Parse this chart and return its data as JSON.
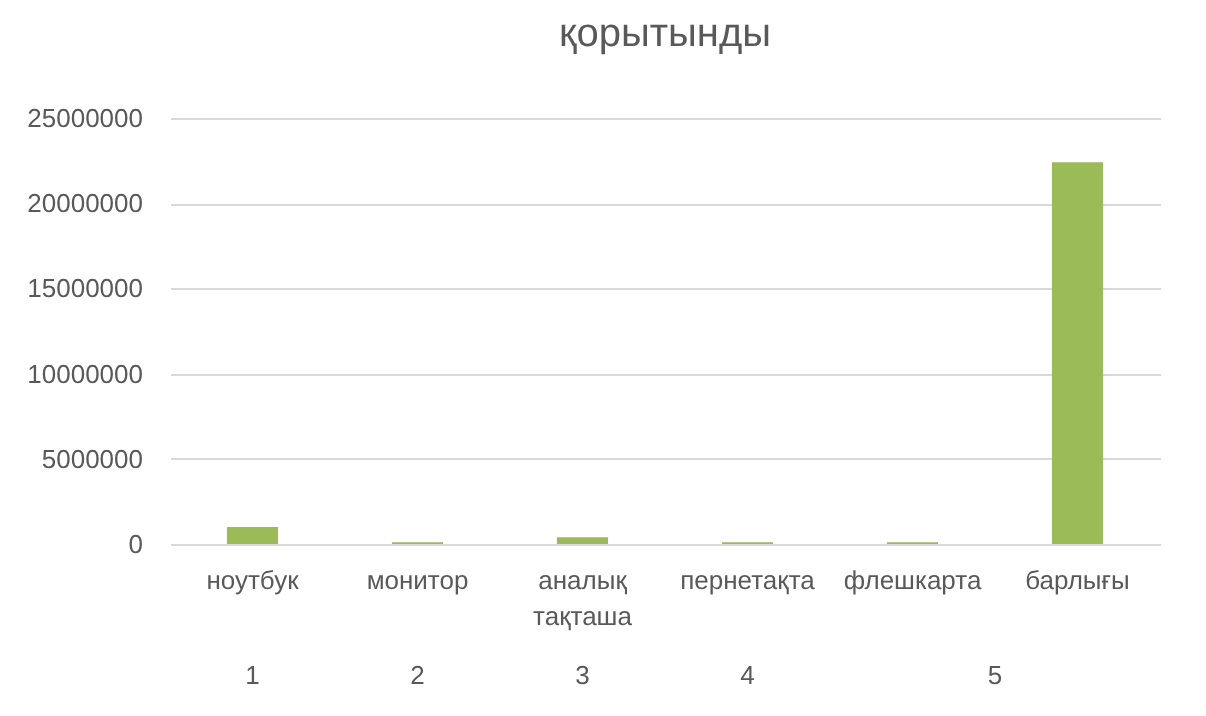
{
  "chart_data": {
    "type": "bar",
    "title": "қорытынды",
    "categories": [
      "ноутбук",
      "монитор",
      "аналық тақташа",
      "пернетақта",
      "флешкарта",
      "барлығы"
    ],
    "values": [
      1000000,
      100000,
      400000,
      100000,
      100000,
      22400000
    ],
    "color": "#9bbb59",
    "ylim": [
      0,
      25000000
    ],
    "yticks": [
      0,
      5000000,
      10000000,
      15000000,
      20000000,
      25000000
    ],
    "grid": "y",
    "annotations": [
      "1",
      "2",
      "3",
      "4",
      "5"
    ]
  }
}
